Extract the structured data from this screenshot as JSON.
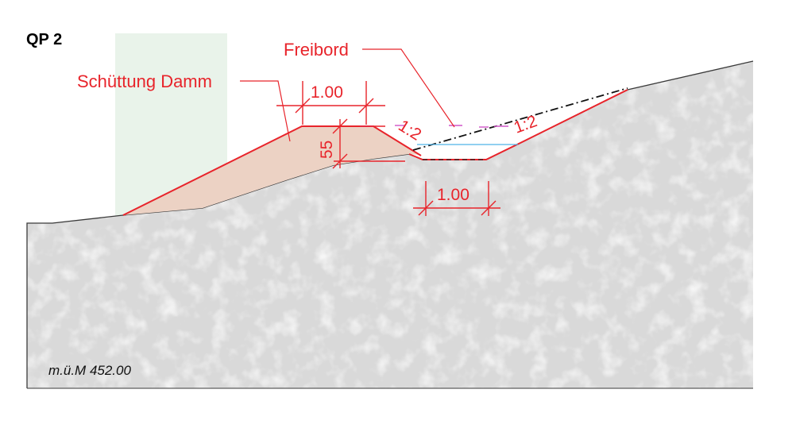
{
  "title": "QP 2",
  "labels": {
    "freibord": "Freibord",
    "schuettung": "Schüttung Damm"
  },
  "dimensions": {
    "dam_crest_width": "1.00",
    "dam_height": "55",
    "ditch_width": "1.00"
  },
  "slopes": {
    "left": "1:2",
    "right": "1:2"
  },
  "elevation": "m.ü.M 452.00",
  "colors": {
    "terrain_fill": "#d9d9d9",
    "terrain_line": "#3a3a3a",
    "dam_fill": "#ecd2c4",
    "design_red": "#e8242b",
    "water_blue": "#4fb3e8",
    "freeboard_magenta": "#d055c8",
    "highlight_green": "#e9f3ea"
  }
}
